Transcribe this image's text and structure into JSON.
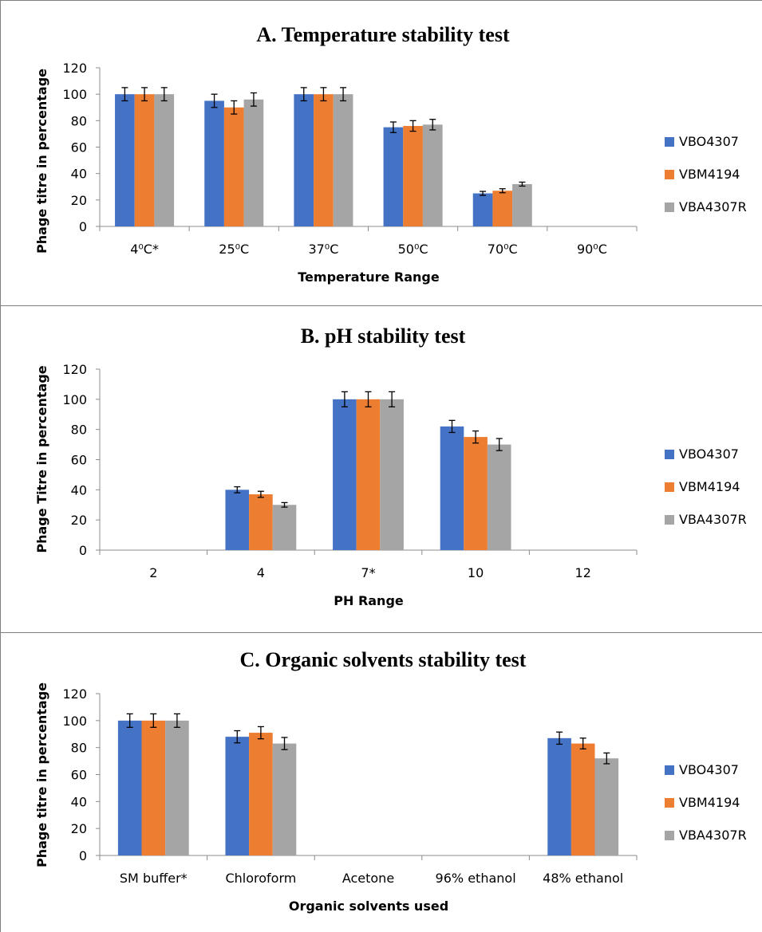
{
  "colors": {
    "VBO4307": "#4472c4",
    "VBM4194": "#ed7d31",
    "VBA4307R": "#a5a5a5"
  },
  "chart_data": [
    {
      "type": "bar",
      "title": "A. Temperature stability test",
      "xlabel": "Temperature Range",
      "ylabel": "Phage titre in percentage",
      "ylim": [
        0,
        120
      ],
      "yticks": [
        0,
        20,
        40,
        60,
        80,
        100,
        120
      ],
      "grid": false,
      "legend_position": "right",
      "categories": [
        "4⁰C*",
        "25⁰C",
        "37⁰C",
        "50⁰C",
        "70⁰C",
        "90⁰C"
      ],
      "series": [
        {
          "name": "VBO4307",
          "values": [
            100,
            95,
            100,
            75,
            25,
            0
          ],
          "errors": [
            5,
            5,
            5,
            4,
            1.5,
            0
          ]
        },
        {
          "name": "VBM4194",
          "values": [
            100,
            90,
            100,
            76,
            27,
            0
          ],
          "errors": [
            5,
            5,
            5,
            4,
            1.5,
            0
          ]
        },
        {
          "name": "VBA4307R",
          "values": [
            100,
            96,
            100,
            77,
            32,
            0
          ],
          "errors": [
            5,
            5,
            5,
            4,
            1.5,
            0
          ]
        }
      ]
    },
    {
      "type": "bar",
      "title": "B. pH stability test",
      "xlabel": "PH Range",
      "ylabel": "Phage Titre in percentage",
      "ylim": [
        0,
        120
      ],
      "yticks": [
        0,
        20,
        40,
        60,
        80,
        100,
        120
      ],
      "grid": false,
      "legend_position": "right",
      "categories": [
        "2",
        "4",
        "7*",
        "10",
        "12"
      ],
      "series": [
        {
          "name": "VBO4307",
          "values": [
            0,
            40,
            100,
            82,
            0
          ],
          "errors": [
            0,
            2,
            5,
            4,
            0
          ]
        },
        {
          "name": "VBM4194",
          "values": [
            0,
            37,
            100,
            75,
            0
          ],
          "errors": [
            0,
            2,
            5,
            4,
            0
          ]
        },
        {
          "name": "VBA4307R",
          "values": [
            0,
            30,
            100,
            70,
            0
          ],
          "errors": [
            0,
            1.5,
            5,
            4,
            0
          ]
        }
      ]
    },
    {
      "type": "bar",
      "title": "C. Organic solvents stability test",
      "xlabel": "Organic solvents used",
      "ylabel": "Phage titre in percentage",
      "ylim": [
        0,
        120
      ],
      "yticks": [
        0,
        20,
        40,
        60,
        80,
        100,
        120
      ],
      "grid": false,
      "legend_position": "right",
      "categories": [
        "SM buffer*",
        "Chloroform",
        "Acetone",
        "96% ethanol",
        "48% ethanol"
      ],
      "series": [
        {
          "name": "VBO4307",
          "values": [
            100,
            88,
            0,
            0,
            87
          ],
          "errors": [
            5,
            4.5,
            0,
            0,
            4.5
          ]
        },
        {
          "name": "VBM4194",
          "values": [
            100,
            91,
            0,
            0,
            83
          ],
          "errors": [
            5,
            4.5,
            0,
            0,
            4
          ]
        },
        {
          "name": "VBA4307R",
          "values": [
            100,
            83,
            0,
            0,
            72
          ],
          "errors": [
            5,
            4.5,
            0,
            0,
            4
          ]
        }
      ]
    }
  ]
}
